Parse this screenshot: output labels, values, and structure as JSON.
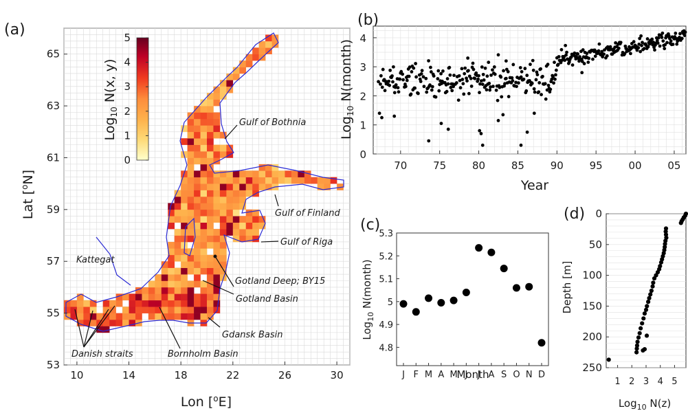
{
  "chart_data": [
    {
      "panel": "(a)",
      "type": "heatmap",
      "xlabel": "Lon [°E]",
      "ylabel": "Lat [°N]",
      "xticks": [
        "10",
        "14",
        "18",
        "22",
        "26",
        "30"
      ],
      "yticks": [
        "53",
        "55",
        "57",
        "59",
        "61",
        "63",
        "65"
      ],
      "xlim": [
        9,
        31
      ],
      "ylim": [
        53,
        66
      ],
      "colorbar": {
        "label": "Log10 N(x, y)",
        "ticks": [
          "0",
          "1",
          "2",
          "3",
          "4",
          "5"
        ],
        "range": [
          0,
          5
        ],
        "colors": [
          "#ffffcc",
          "#fed976",
          "#feb24c",
          "#fd8d3c",
          "#f03b20",
          "#bd0026",
          "#67001f"
        ]
      },
      "coastline_color": "#2a2ad4",
      "annotations": [
        "Gulf of Bothnia",
        "Gulf of Finland",
        "Gulf of Riga",
        "Kattegat",
        "Gotland Deep; BY15",
        "Gotland Basin",
        "Gdansk Basin",
        "Danish straits",
        "Bornholm Basin"
      ]
    },
    {
      "panel": "(b)",
      "type": "scatter",
      "xlabel": "Year",
      "ylabel": "Log10 N(month)",
      "xticks": [
        "70",
        "75",
        "80",
        "85",
        "90",
        "95",
        "00",
        "05"
      ],
      "yticks": [
        "0",
        "1",
        "2",
        "3",
        "4"
      ],
      "xlim": [
        1966.5,
        2006.5
      ],
      "ylim": [
        0,
        4.4
      ],
      "trend": [
        {
          "years": [
            1967,
            1990
          ],
          "mean": 2.5,
          "spread": 0.45
        },
        {
          "years": [
            1990,
            2006.5
          ],
          "mean_start": 3.25,
          "mean_end": 4.0,
          "spread": 0.2
        }
      ],
      "outliers": [
        [
          1967.3,
          1.4
        ],
        [
          1967.6,
          1.25
        ],
        [
          1969.2,
          1.3
        ],
        [
          1973.6,
          0.45
        ],
        [
          1975.2,
          1.05
        ],
        [
          1976.1,
          0.85
        ],
        [
          1980.1,
          0.8
        ],
        [
          1980.3,
          0.7
        ],
        [
          1980.5,
          0.3
        ],
        [
          1982.5,
          1.15
        ],
        [
          1983.1,
          1.35
        ],
        [
          1985.4,
          0.3
        ],
        [
          1986.2,
          0.75
        ],
        [
          1987.1,
          1.4
        ],
        [
          1993.2,
          2.8
        ],
        [
          1978.6,
          3.3
        ],
        [
          1983.5,
          3.2
        ]
      ]
    },
    {
      "panel": "(c)",
      "type": "scatter",
      "xlabel": "Month",
      "ylabel": "Log10 N(month)",
      "categories": [
        "J",
        "F",
        "M",
        "A",
        "M",
        "J",
        "J",
        "A",
        "S",
        "O",
        "N",
        "D"
      ],
      "values": [
        4.99,
        4.955,
        5.015,
        4.995,
        5.005,
        5.04,
        5.235,
        5.215,
        5.145,
        5.06,
        5.065,
        4.82
      ],
      "yticks": [
        "4.8",
        "4.9",
        "5",
        "5.1",
        "5.2",
        "5.3"
      ],
      "ylim": [
        4.72,
        5.3
      ]
    },
    {
      "panel": "(d)",
      "type": "scatter",
      "xlabel": "Log10 N(z)",
      "ylabel": "Depth [m]",
      "xticks": [
        "1",
        "2",
        "3",
        "4",
        "5"
      ],
      "yticks": [
        "0",
        "50",
        "100",
        "150",
        "200",
        "250"
      ],
      "xlim": [
        0.2,
        5.8
      ],
      "ylim": [
        0,
        250
      ],
      "points": [
        [
          5.8,
          0
        ],
        [
          5.75,
          3
        ],
        [
          5.65,
          6
        ],
        [
          5.58,
          9
        ],
        [
          5.5,
          12
        ],
        [
          5.45,
          15
        ],
        [
          4.4,
          24
        ],
        [
          4.38,
          29
        ],
        [
          4.4,
          34
        ],
        [
          4.42,
          39
        ],
        [
          4.36,
          44
        ],
        [
          4.33,
          49
        ],
        [
          4.31,
          54
        ],
        [
          4.28,
          59
        ],
        [
          4.24,
          64
        ],
        [
          4.18,
          69
        ],
        [
          4.12,
          74
        ],
        [
          4.06,
          79
        ],
        [
          3.98,
          85
        ],
        [
          3.92,
          90
        ],
        [
          3.82,
          95
        ],
        [
          3.7,
          100
        ],
        [
          3.58,
          105
        ],
        [
          3.5,
          112
        ],
        [
          3.46,
          118
        ],
        [
          3.38,
          125
        ],
        [
          3.3,
          131
        ],
        [
          3.22,
          137
        ],
        [
          3.15,
          143
        ],
        [
          3.06,
          150
        ],
        [
          3.0,
          156
        ],
        [
          2.9,
          162
        ],
        [
          2.82,
          170
        ],
        [
          2.72,
          178
        ],
        [
          2.62,
          186
        ],
        [
          2.55,
          194
        ],
        [
          2.47,
          201
        ],
        [
          2.4,
          208
        ],
        [
          2.37,
          214
        ],
        [
          2.35,
          219
        ],
        [
          2.33,
          225
        ],
        [
          2.9,
          220
        ],
        [
          3.05,
          198
        ],
        [
          2.78,
          222
        ],
        [
          0.38,
          237
        ]
      ]
    }
  ]
}
